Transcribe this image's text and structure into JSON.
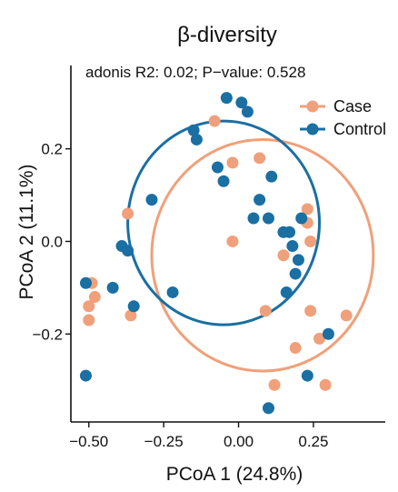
{
  "chart_data": {
    "type": "scatter",
    "title": "β-diversity",
    "annotation": "adonis R2: 0.02; P−value: 0.528",
    "xlabel": "PCoA 1 (24.8%)",
    "ylabel": "PCoA 2 (11.1%)",
    "xlim": [
      -0.56,
      0.49
    ],
    "ylim": [
      -0.39,
      0.38
    ],
    "x_ticks": [
      -0.5,
      -0.25,
      0.0,
      0.25
    ],
    "x_tick_labels": [
      "−0.50",
      "−0.25",
      "0.00",
      "0.25"
    ],
    "y_ticks": [
      -0.2,
      0.0,
      0.2
    ],
    "y_tick_labels": [
      "−0.2",
      "0.0",
      "0.2"
    ],
    "grid": false,
    "legend_position": "top-right",
    "series": [
      {
        "name": "Case",
        "color": "#F0A07A",
        "points": [
          [
            -0.08,
            0.26
          ],
          [
            -0.02,
            0.17
          ],
          [
            0.07,
            0.18
          ],
          [
            -0.37,
            0.06
          ],
          [
            -0.02,
            0.0
          ],
          [
            0.23,
            0.07
          ],
          [
            0.23,
            0.04
          ],
          [
            0.24,
            0.0
          ],
          [
            0.15,
            -0.03
          ],
          [
            -0.48,
            -0.12
          ],
          [
            -0.5,
            -0.14
          ],
          [
            -0.5,
            -0.17
          ],
          [
            -0.36,
            -0.16
          ],
          [
            0.09,
            -0.15
          ],
          [
            0.24,
            -0.15
          ],
          [
            0.36,
            -0.16
          ],
          [
            0.19,
            -0.23
          ],
          [
            0.27,
            -0.21
          ],
          [
            0.12,
            -0.31
          ],
          [
            0.29,
            -0.31
          ],
          [
            -0.49,
            -0.09
          ]
        ]
      },
      {
        "name": "Control",
        "color": "#1A6FA3",
        "points": [
          [
            -0.04,
            0.31
          ],
          [
            0.01,
            0.3
          ],
          [
            0.03,
            0.28
          ],
          [
            -0.15,
            0.24
          ],
          [
            -0.14,
            0.22
          ],
          [
            -0.07,
            0.16
          ],
          [
            -0.05,
            0.13
          ],
          [
            0.11,
            0.14
          ],
          [
            0.07,
            0.09
          ],
          [
            -0.29,
            0.09
          ],
          [
            0.05,
            0.05
          ],
          [
            0.1,
            0.05
          ],
          [
            0.15,
            0.02
          ],
          [
            0.17,
            0.02
          ],
          [
            0.21,
            0.05
          ],
          [
            0.18,
            -0.01
          ],
          [
            0.2,
            -0.04
          ],
          [
            -0.39,
            -0.01
          ],
          [
            -0.37,
            -0.02
          ],
          [
            0.19,
            -0.07
          ],
          [
            -0.51,
            -0.09
          ],
          [
            -0.42,
            -0.1
          ],
          [
            0.16,
            -0.11
          ],
          [
            -0.22,
            -0.11
          ],
          [
            -0.35,
            -0.14
          ],
          [
            0.3,
            -0.2
          ],
          [
            0.23,
            -0.29
          ],
          [
            -0.51,
            -0.29
          ],
          [
            0.1,
            -0.36
          ]
        ]
      }
    ],
    "ellipses": [
      {
        "series": "Case",
        "color": "#F0A07A",
        "cx": 0.08,
        "cy": -0.03,
        "rx": 0.37,
        "ry": 0.25
      },
      {
        "series": "Control",
        "color": "#1A6FA3",
        "cx": -0.05,
        "cy": 0.04,
        "rx": 0.32,
        "ry": 0.22
      }
    ]
  }
}
